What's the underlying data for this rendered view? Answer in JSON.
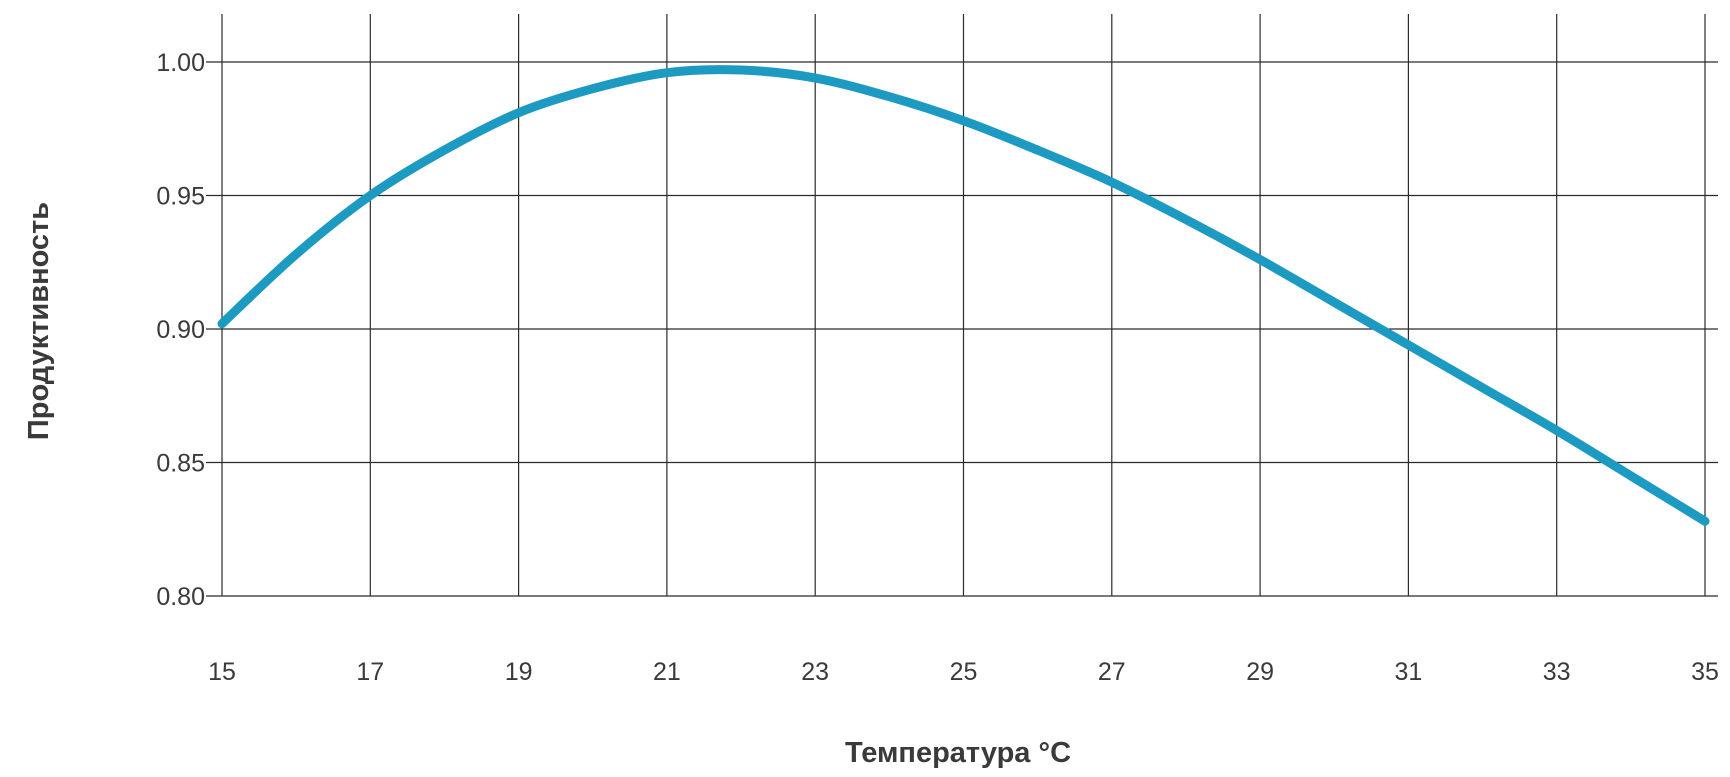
{
  "chart_data": {
    "type": "line",
    "title": "",
    "xlabel": "Температура °C",
    "ylabel": "Продуктивность",
    "xlim": [
      15,
      35
    ],
    "ylim": [
      0.8,
      1.0
    ],
    "x_ticks": [
      "15",
      "17",
      "19",
      "21",
      "23",
      "25",
      "27",
      "29",
      "31",
      "33",
      "35"
    ],
    "y_ticks": [
      "0.80",
      "0.85",
      "0.90",
      "0.95",
      "1.00"
    ],
    "grid": true,
    "legend": "none",
    "series": [
      {
        "color": "#1d9ac2",
        "x": [
          15,
          16,
          17,
          18,
          19,
          20,
          21,
          22,
          23,
          24,
          25,
          26,
          27,
          28,
          29,
          30,
          31,
          32,
          33,
          34,
          35
        ],
        "y": [
          0.902,
          0.928,
          0.95,
          0.967,
          0.981,
          0.99,
          0.996,
          0.997,
          0.994,
          0.987,
          0.978,
          0.967,
          0.955,
          0.941,
          0.926,
          0.91,
          0.894,
          0.878,
          0.862,
          0.845,
          0.828
        ]
      }
    ]
  }
}
